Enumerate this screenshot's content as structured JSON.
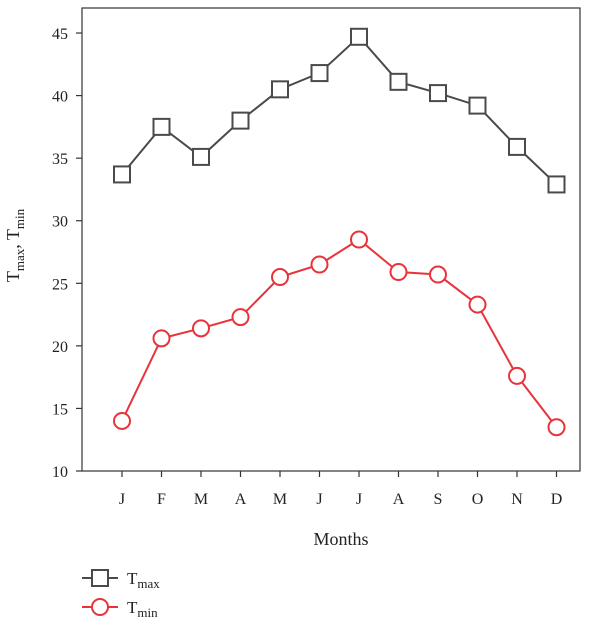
{
  "chart_data": {
    "type": "line",
    "categories": [
      "J",
      "F",
      "M",
      "A",
      "M",
      "J",
      "J",
      "A",
      "S",
      "O",
      "N",
      "D"
    ],
    "xlabel": "Months",
    "ylabel": {
      "base1": "T",
      "sub1": "max",
      "sep": ", ",
      "base2": "T",
      "sub2": "min"
    },
    "ylim": [
      10,
      47
    ],
    "yticks": [
      10,
      15,
      20,
      25,
      30,
      35,
      40,
      45
    ],
    "grid": false,
    "legend_position": "bottom-left",
    "series": [
      {
        "name": "Tmax",
        "legend_base": "T",
        "legend_sub": "max",
        "marker": "square",
        "color": "#4a4a4a",
        "values": [
          33.7,
          37.5,
          35.1,
          38.0,
          40.5,
          41.8,
          44.7,
          41.1,
          40.2,
          39.2,
          35.9,
          32.9
        ]
      },
      {
        "name": "Tmin",
        "legend_base": "T",
        "legend_sub": "min",
        "marker": "circle",
        "color": "#e8333a",
        "values": [
          14.0,
          20.6,
          21.4,
          22.3,
          25.5,
          26.5,
          28.5,
          25.9,
          25.7,
          23.3,
          17.6,
          13.5
        ]
      }
    ]
  }
}
